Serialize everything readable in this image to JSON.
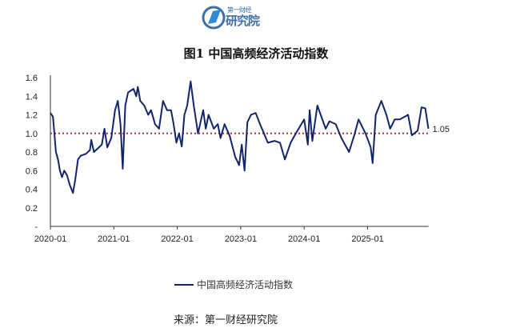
{
  "logo": {
    "top_text": "第一财经",
    "main_text": "研究院",
    "color": "#3d6fa8"
  },
  "chart_data": {
    "type": "line",
    "title": "图1  中国高频经济活动指数",
    "xlabel": "",
    "ylabel": "",
    "ylim": [
      0,
      1.6
    ],
    "x_range": [
      "2020-01-01",
      "2025-12-31"
    ],
    "y_ticks": [
      "-",
      "0.2",
      "0.4",
      "0.6",
      "0.8",
      "1.0",
      "1.2",
      "1.4",
      "1.6"
    ],
    "x_ticks": [
      "2020-01",
      "2021-01",
      "2022-01",
      "2023-01",
      "2024-01",
      "2025-01"
    ],
    "grid": false,
    "legend_position": "bottom",
    "reference_line": {
      "value": 1.0,
      "color": "#c0283a",
      "style": "dotted"
    },
    "end_label": "1.05",
    "series": [
      {
        "name": "中国高频经济活动指数",
        "color": "#13246b",
        "points": [
          [
            "2020-01-01",
            1.22
          ],
          [
            "2020-01-16",
            1.18
          ],
          [
            "2020-01-24",
            1.0
          ],
          [
            "2020-02-02",
            0.8
          ],
          [
            "2020-02-14",
            0.72
          ],
          [
            "2020-02-25",
            0.6
          ],
          [
            "2020-03-08",
            0.53
          ],
          [
            "2020-03-21",
            0.6
          ],
          [
            "2020-04-06",
            0.55
          ],
          [
            "2020-04-21",
            0.45
          ],
          [
            "2020-05-10",
            0.36
          ],
          [
            "2020-05-23",
            0.5
          ],
          [
            "2020-06-08",
            0.72
          ],
          [
            "2020-06-24",
            0.76
          ],
          [
            "2020-07-24",
            0.78
          ],
          [
            "2020-08-16",
            0.82
          ],
          [
            "2020-08-24",
            0.93
          ],
          [
            "2020-09-08",
            0.8
          ],
          [
            "2020-10-01",
            0.84
          ],
          [
            "2020-10-24",
            0.88
          ],
          [
            "2020-11-08",
            1.05
          ],
          [
            "2020-11-24",
            0.85
          ],
          [
            "2020-12-17",
            0.95
          ],
          [
            "2021-01-08",
            1.25
          ],
          [
            "2021-01-24",
            1.35
          ],
          [
            "2021-02-08",
            1.1
          ],
          [
            "2021-02-21",
            0.62
          ],
          [
            "2021-03-08",
            1.3
          ],
          [
            "2021-03-24",
            1.44
          ],
          [
            "2021-04-24",
            1.48
          ],
          [
            "2021-05-10",
            1.4
          ],
          [
            "2021-05-19",
            1.5
          ],
          [
            "2021-06-02",
            1.35
          ],
          [
            "2021-06-25",
            1.3
          ],
          [
            "2021-07-18",
            1.2
          ],
          [
            "2021-08-03",
            1.25
          ],
          [
            "2021-08-26",
            1.1
          ],
          [
            "2021-09-18",
            1.05
          ],
          [
            "2021-10-11",
            1.35
          ],
          [
            "2021-11-03",
            1.25
          ],
          [
            "2021-11-26",
            1.25
          ],
          [
            "2021-12-11",
            1.1
          ],
          [
            "2021-12-27",
            0.9
          ],
          [
            "2022-01-11",
            1.0
          ],
          [
            "2022-01-27",
            0.86
          ],
          [
            "2022-02-11",
            1.2
          ],
          [
            "2022-02-27",
            1.3
          ],
          [
            "2022-03-19",
            1.56
          ],
          [
            "2022-04-06",
            1.3
          ],
          [
            "2022-04-30",
            1.0
          ],
          [
            "2022-05-30",
            1.25
          ],
          [
            "2022-06-14",
            1.05
          ],
          [
            "2022-06-30",
            1.2
          ],
          [
            "2022-07-30",
            1.05
          ],
          [
            "2022-08-22",
            1.1
          ],
          [
            "2022-09-07",
            0.95
          ],
          [
            "2022-09-30",
            1.1
          ],
          [
            "2022-10-30",
            0.97
          ],
          [
            "2022-11-30",
            0.75
          ],
          [
            "2022-12-23",
            0.66
          ],
          [
            "2023-01-07",
            0.88
          ],
          [
            "2023-01-23",
            0.6
          ],
          [
            "2023-02-08",
            1.12
          ],
          [
            "2023-03-01",
            1.2
          ],
          [
            "2023-03-28",
            1.22
          ],
          [
            "2023-04-22",
            1.1
          ],
          [
            "2023-05-15",
            1.0
          ],
          [
            "2023-06-06",
            0.9
          ],
          [
            "2023-07-15",
            0.92
          ],
          [
            "2023-08-15",
            0.9
          ],
          [
            "2023-09-12",
            0.72
          ],
          [
            "2023-10-15",
            0.9
          ],
          [
            "2023-11-14",
            1.0
          ],
          [
            "2024-01-01",
            1.15
          ],
          [
            "2024-01-22",
            0.88
          ],
          [
            "2024-02-02",
            1.25
          ],
          [
            "2024-02-17",
            0.92
          ],
          [
            "2024-03-17",
            1.3
          ],
          [
            "2024-05-04",
            1.05
          ],
          [
            "2024-05-26",
            1.13
          ],
          [
            "2024-07-01",
            1.1
          ],
          [
            "2024-08-03",
            0.95
          ],
          [
            "2024-09-16",
            0.8
          ],
          [
            "2024-10-19",
            1.0
          ],
          [
            "2024-11-10",
            1.15
          ],
          [
            "2024-12-20",
            1.0
          ],
          [
            "2025-01-19",
            0.85
          ],
          [
            "2025-01-30",
            0.68
          ],
          [
            "2025-02-17",
            1.2
          ],
          [
            "2025-03-21",
            1.35
          ],
          [
            "2025-04-19",
            1.2
          ],
          [
            "2025-05-11",
            1.05
          ],
          [
            "2025-06-06",
            1.15
          ],
          [
            "2025-07-05",
            1.15
          ],
          [
            "2025-08-22",
            1.2
          ],
          [
            "2025-09-13",
            0.98
          ],
          [
            "2025-10-16",
            1.03
          ],
          [
            "2025-11-07",
            1.28
          ],
          [
            "2025-11-29",
            1.27
          ],
          [
            "2025-12-17",
            1.05
          ]
        ]
      }
    ],
    "source": "来源：第一财经研究院"
  }
}
